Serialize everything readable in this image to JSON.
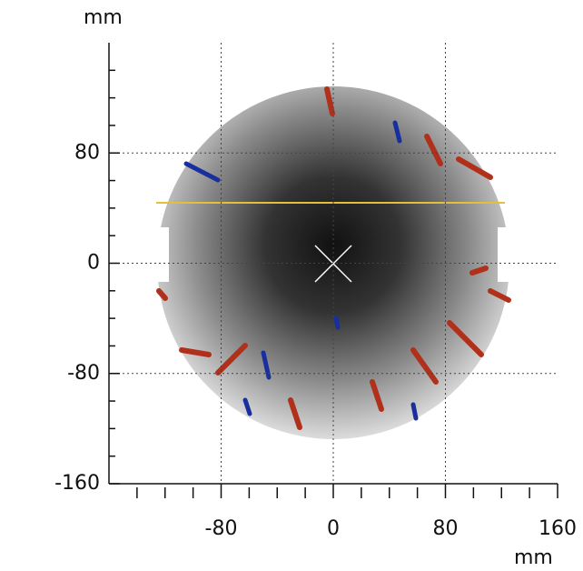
{
  "chart_data": {
    "type": "heatmap-map",
    "x_unit": "mm",
    "y_unit": "mm",
    "xlim": [
      -160,
      160
    ],
    "ylim": [
      -160,
      160
    ],
    "xticks": [
      -80,
      0,
      80,
      160
    ],
    "yticks": [
      -160,
      -80,
      0,
      80
    ],
    "xminorticks": [
      -140,
      -120,
      -100,
      -60,
      -40,
      -20,
      20,
      40,
      60,
      100,
      120,
      140
    ],
    "yminorticks": [
      -140,
      -120,
      -100,
      -60,
      -40,
      -20,
      20,
      40,
      60,
      100,
      120,
      140
    ],
    "gridticks": [
      -80,
      0,
      80
    ],
    "grid": true
  }
}
